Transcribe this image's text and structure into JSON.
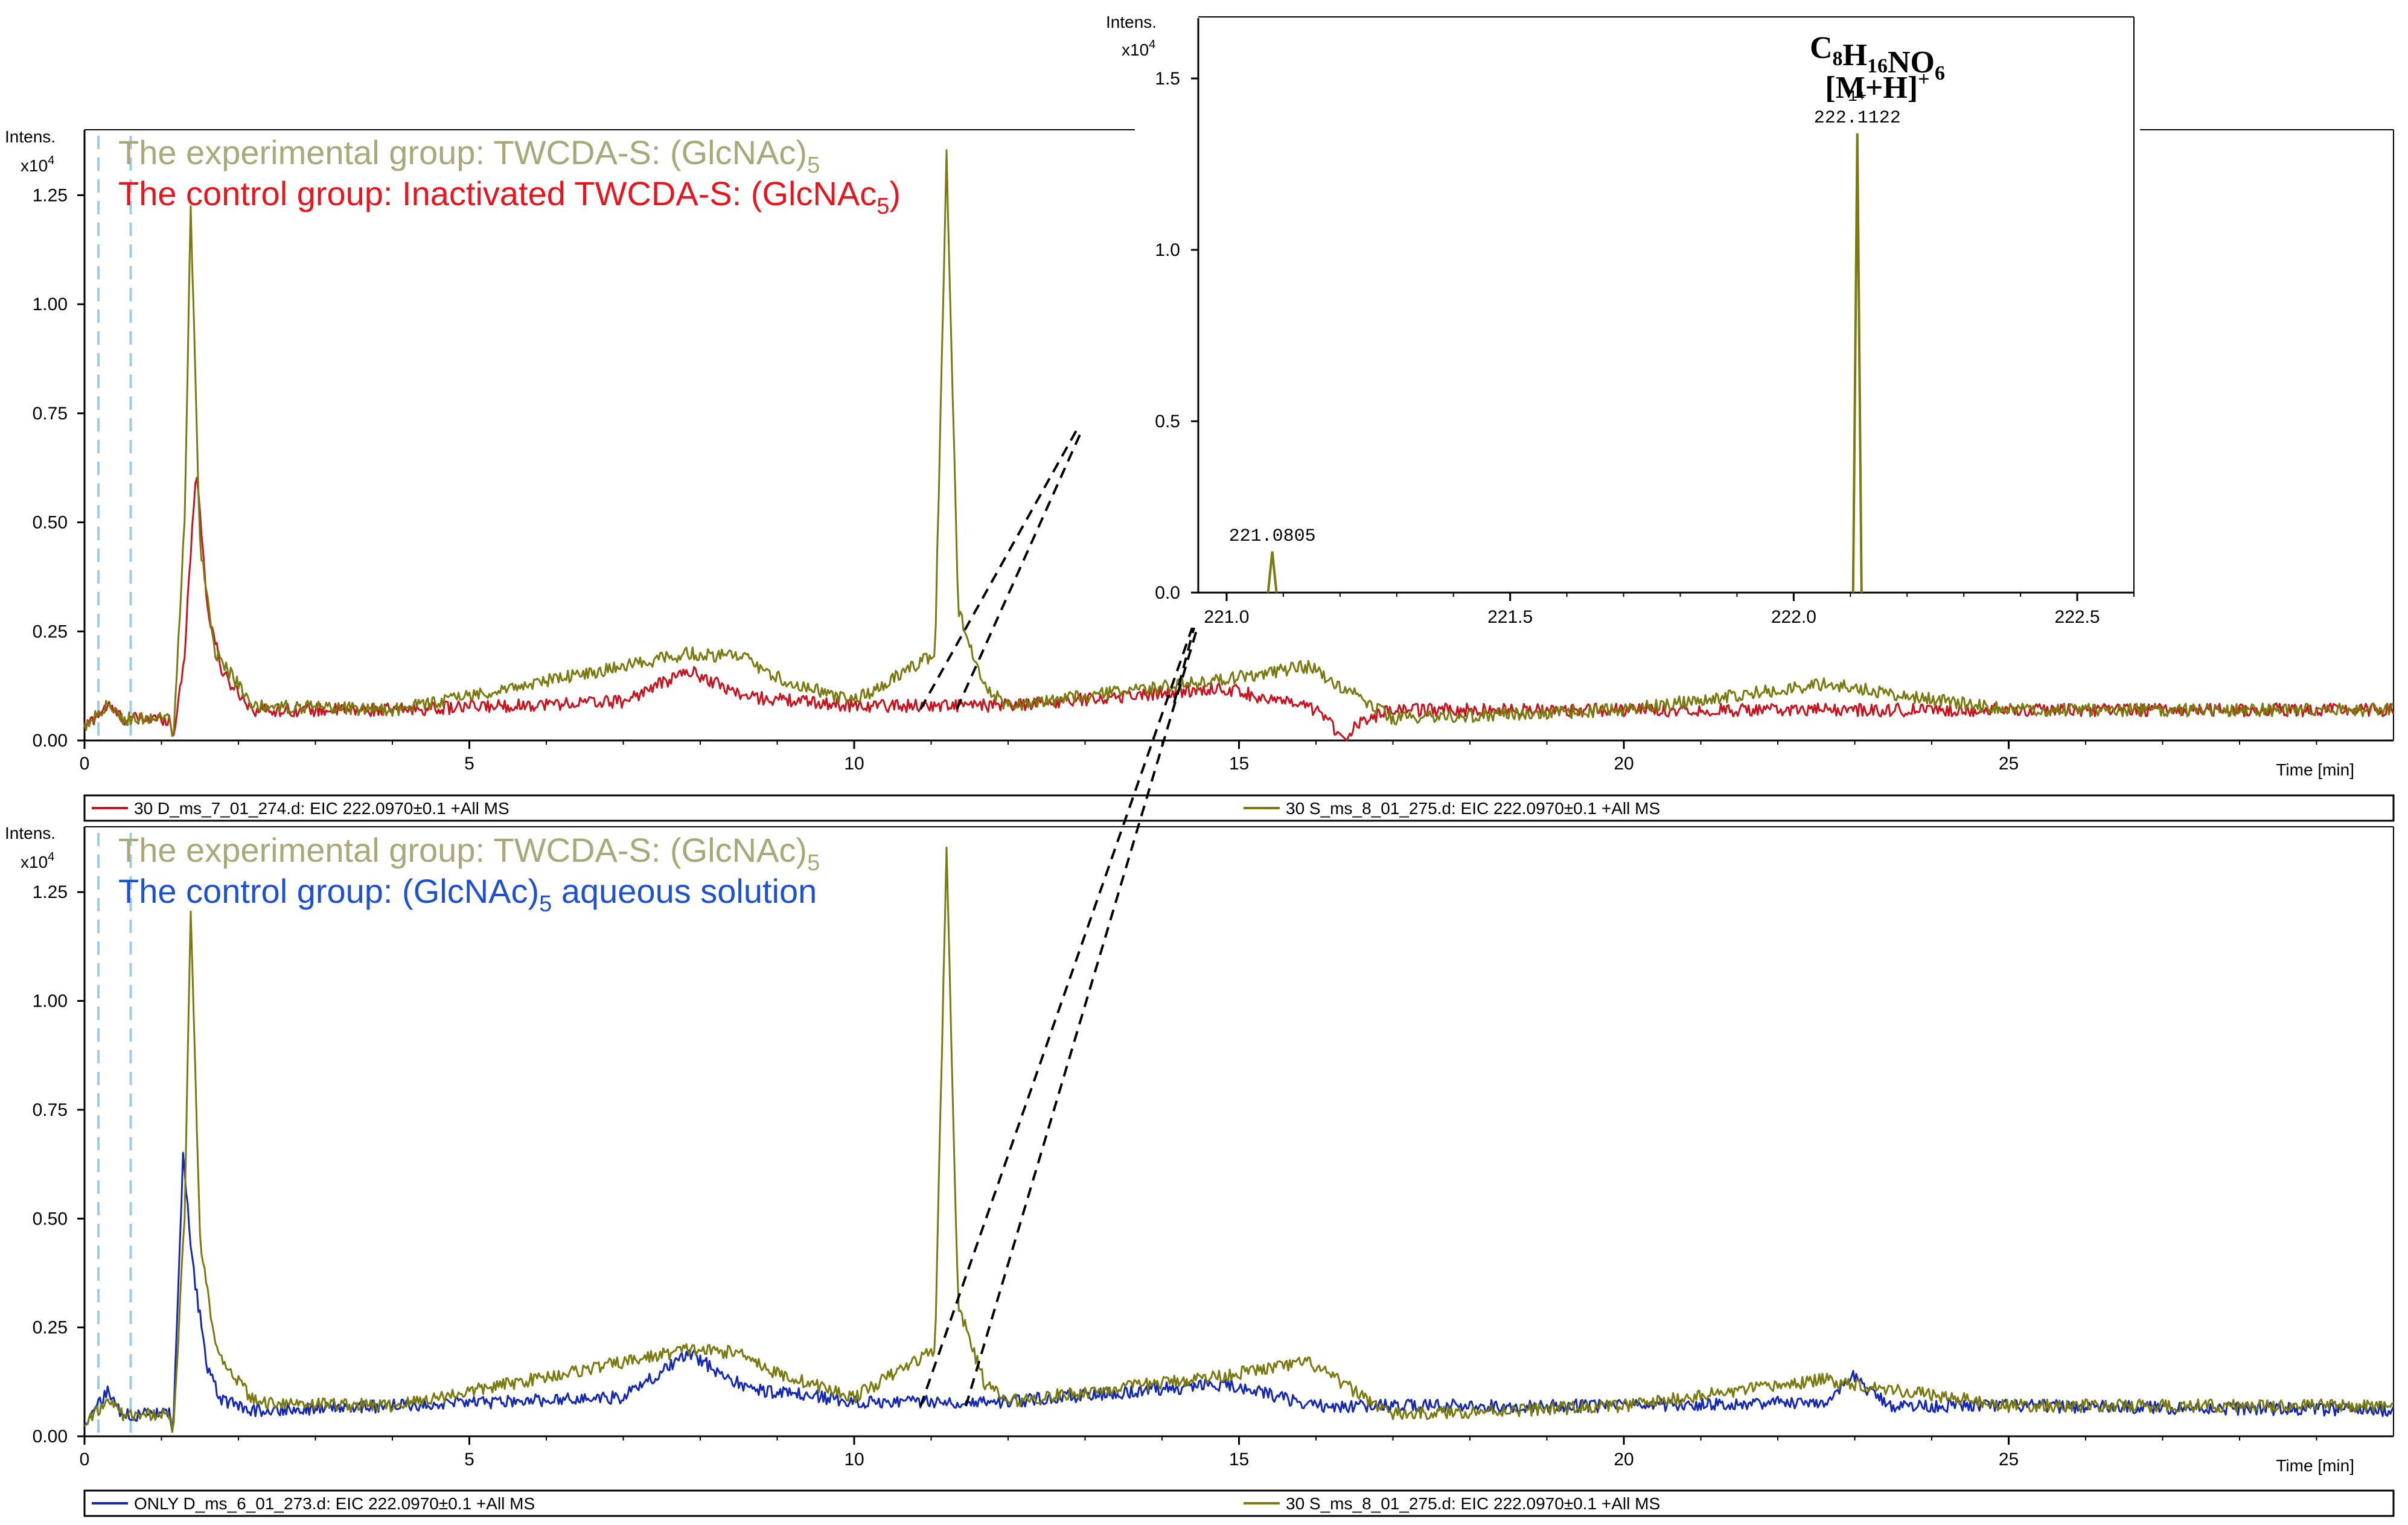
{
  "chart_data": [
    {
      "type": "line",
      "panel": "top",
      "y_axis_label": "Intens.",
      "y_axis_multiplier": "x10",
      "y_axis_multiplier_exp": "4",
      "x_axis_label": "Time [min]",
      "xlim": [
        0,
        30
      ],
      "ylim": [
        0,
        1.4
      ],
      "x_ticks": [
        "0",
        "5",
        "10",
        "15",
        "20",
        "25"
      ],
      "y_ticks": [
        "0.00",
        "0.25",
        "0.50",
        "0.75",
        "1.00",
        "1.25"
      ],
      "annotations": [
        {
          "text": "The experimental group: TWCDA-S: (GlcNAc)",
          "sub": "5",
          "color": "#a8a878"
        },
        {
          "text": "The control group: Inactivated TWCDA-S: (GlcNAc",
          "sub": "5",
          "tail": ")",
          "color": "#e8141e"
        }
      ],
      "legend": [
        {
          "label": "30 D_ms_7_01_274.d: EIC 222.0970±0.1 +All MS",
          "color": "#c8141e"
        },
        {
          "label": "30 S_ms_8_01_275.d: EIC 222.0970±0.1 +All MS",
          "color": "#7a7a10"
        }
      ],
      "series": [
        {
          "name": "30 D_ms_7_01_274.d: EIC 222.0970±0.1 +All MS",
          "color": "#c8141e",
          "x": [
            0,
            0.3,
            0.5,
            1.1,
            1.15,
            1.3,
            1.45,
            1.6,
            1.8,
            2.2,
            4,
            7,
            7.85,
            8.6,
            10,
            12,
            14.8,
            16,
            16.4,
            16.5,
            17,
            20,
            25,
            30
          ],
          "y": [
            0.03,
            0.08,
            0.05,
            0.05,
            0.0,
            0.2,
            0.63,
            0.3,
            0.15,
            0.07,
            0.07,
            0.09,
            0.16,
            0.1,
            0.08,
            0.08,
            0.12,
            0.07,
            0.0,
            0.04,
            0.07,
            0.07,
            0.07,
            0.07
          ]
        },
        {
          "name": "30 S_ms_8_01_275.d: EIC 222.0970±0.1 +All MS",
          "color": "#7a7a10",
          "x": [
            0,
            0.3,
            0.5,
            1.1,
            1.15,
            1.3,
            1.38,
            1.5,
            1.7,
            2.2,
            4,
            7,
            7.85,
            8.6,
            8.9,
            10,
            11.05,
            11.2,
            11.35,
            11.7,
            12,
            14.8,
            15.9,
            17,
            20,
            22.6,
            25,
            30
          ],
          "y": [
            0.03,
            0.08,
            0.05,
            0.05,
            0.0,
            0.5,
            1.22,
            0.45,
            0.2,
            0.08,
            0.07,
            0.17,
            0.2,
            0.19,
            0.15,
            0.09,
            0.2,
            1.35,
            0.3,
            0.12,
            0.08,
            0.14,
            0.17,
            0.05,
            0.07,
            0.13,
            0.07,
            0.07
          ]
        }
      ]
    },
    {
      "type": "line",
      "panel": "bottom",
      "y_axis_label": "Intens.",
      "y_axis_multiplier": "x10",
      "y_axis_multiplier_exp": "4",
      "x_axis_label": "Time [min]",
      "xlim": [
        0,
        30
      ],
      "ylim": [
        0,
        1.4
      ],
      "x_ticks": [
        "0",
        "5",
        "10",
        "15",
        "20",
        "25"
      ],
      "y_ticks": [
        "0.00",
        "0.25",
        "0.50",
        "0.75",
        "1.00",
        "1.25"
      ],
      "annotations": [
        {
          "text": "The experimental group: TWCDA-S: (GlcNAc)",
          "sub": "5",
          "color": "#a8a878"
        },
        {
          "text": "The control group: (GlcNAc)",
          "sub": "5",
          "tail": " aqueous solution",
          "color": "#1e50d2"
        }
      ],
      "legend": [
        {
          "label": "ONLY D_ms_6_01_273.d: EIC 222.0970±0.1 +All MS",
          "color": "#1428b4"
        },
        {
          "label": "30 S_ms_8_01_275.d: EIC 222.0970±0.1 +All MS",
          "color": "#7a7a10"
        }
      ],
      "series": [
        {
          "name": "ONLY D_ms_6_01_273.d: EIC 222.0970±0.1 +All MS",
          "color": "#1428b4",
          "x": [
            0,
            0.3,
            0.5,
            1.1,
            1.15,
            1.28,
            1.4,
            1.6,
            1.8,
            2.2,
            4,
            7,
            7.85,
            8.6,
            10,
            12,
            14.8,
            16,
            20,
            22.7,
            23.0,
            23.2,
            23.5,
            25,
            30
          ],
          "y": [
            0.03,
            0.1,
            0.05,
            0.05,
            0.0,
            0.64,
            0.4,
            0.15,
            0.08,
            0.06,
            0.07,
            0.09,
            0.19,
            0.11,
            0.08,
            0.08,
            0.12,
            0.07,
            0.07,
            0.08,
            0.14,
            0.1,
            0.07,
            0.07,
            0.06
          ]
        },
        {
          "name": "30 S_ms_8_01_275.d: EIC 222.0970±0.1 +All MS",
          "color": "#7a7a10",
          "x": [
            0,
            0.3,
            0.5,
            1.1,
            1.15,
            1.3,
            1.38,
            1.5,
            1.7,
            2.2,
            4,
            7,
            7.85,
            8.6,
            8.9,
            10,
            11.05,
            11.2,
            11.35,
            11.7,
            12,
            14.8,
            15.9,
            17,
            20,
            22.6,
            25,
            30
          ],
          "y": [
            0.03,
            0.08,
            0.05,
            0.05,
            0.0,
            0.5,
            1.22,
            0.45,
            0.2,
            0.08,
            0.07,
            0.17,
            0.2,
            0.19,
            0.15,
            0.09,
            0.2,
            1.35,
            0.3,
            0.12,
            0.08,
            0.14,
            0.17,
            0.05,
            0.07,
            0.13,
            0.07,
            0.07
          ]
        }
      ]
    },
    {
      "type": "bar",
      "panel": "inset",
      "title": "C8H16NO6 [M+H]+",
      "formula_parts": [
        [
          "C",
          "8"
        ],
        [
          "H",
          "16"
        ],
        [
          "NO",
          "6"
        ]
      ],
      "ion": "[M+H]",
      "ion_sup": "+",
      "y_axis_label": "Intens.",
      "y_axis_multiplier": "x10",
      "y_axis_multiplier_exp": "4",
      "xlim": [
        220.95,
        222.6
      ],
      "ylim": [
        0,
        1.5
      ],
      "x_ticks": [
        "221.0",
        "221.5",
        "222.0",
        "222.5"
      ],
      "y_ticks": [
        "0.0",
        "0.5",
        "1.0",
        "1.5"
      ],
      "peaks": [
        {
          "x": 221.0805,
          "y": 0.12,
          "label": "221.0805"
        },
        {
          "x": 222.1122,
          "y": 1.34,
          "label": "222.1122",
          "charge": "1+"
        }
      ],
      "color": "#7a7a10"
    }
  ]
}
